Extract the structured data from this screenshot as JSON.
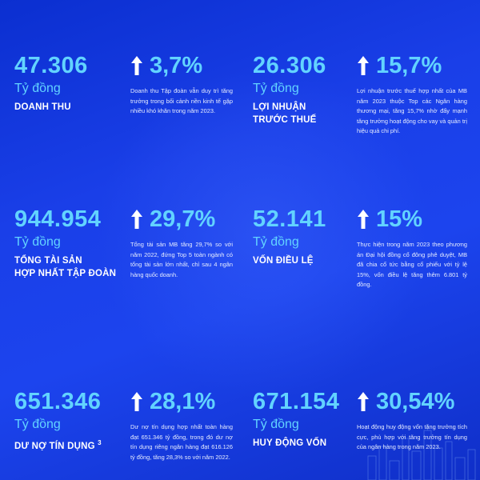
{
  "unit_label": "Tỷ đồng",
  "metrics": [
    {
      "value": "47.306",
      "label_line1": "DOANH THU",
      "label_line2": "",
      "growth": "3,7%",
      "description": "Doanh thu Tập đoàn vẫn duy trì tăng trưởng trong bối cảnh nền kinh tế gặp nhiều khó khăn trong năm 2023."
    },
    {
      "value": "26.306",
      "label_line1": "LỢI NHUẬN",
      "label_line2": "TRƯỚC THUẾ",
      "growth": "15,7%",
      "description": "Lợi nhuận trước thuế hợp nhất của MB năm 2023 thuộc Top các Ngân hàng thương mại, tăng 15,7% nhờ đẩy mạnh tăng trưởng hoạt động cho vay và quản trị hiệu quả chi phí."
    },
    {
      "value": "944.954",
      "label_line1": "TỔNG TÀI SẢN",
      "label_line2": "HỢP NHẤT TẬP ĐOÀN",
      "growth": "29,7%",
      "description": "Tổng tài sản MB tăng 29,7% so với năm 2022, đứng Top 5 toàn ngành có tổng tài sản lớn nhất, chỉ sau 4 ngân hàng quốc doanh."
    },
    {
      "value": "52.141",
      "label_line1": "VỐN ĐIỀU LỆ",
      "label_line2": "",
      "growth": "15%",
      "description": "Thực hiện trong năm 2023 theo phương án Đại hội đồng cổ đông phê duyệt, MB đã chia cổ tức bằng cổ phiếu với tỷ lệ 15%, vốn điều lệ tăng thêm 6.801 tỷ đồng."
    },
    {
      "value": "651.346",
      "label_line1": "DƯ NỢ TÍN DỤNG",
      "label_sup": "3",
      "label_line2": "",
      "growth": "28,1%",
      "description": "Dư nợ tín dụng hợp nhất toàn hàng đạt 651.346 tỷ đồng, trong đó dư nợ tín dụng riêng ngân hàng đạt 616.126 tỷ đồng, tăng 28,3% so với năm 2022."
    },
    {
      "value": "671.154",
      "label_line1": "HUY ĐỘNG VỐN",
      "label_line2": "",
      "growth": "30,54%",
      "description": "Hoạt động huy động vốn tăng trưởng tích cực, phù hợp với tăng trưởng tín dụng của ngân hàng trong năm 2023."
    }
  ],
  "colors": {
    "accent": "#62d3ff",
    "background": "#1a3fe8",
    "text": "#ffffff"
  },
  "icons": {
    "growth": "arrow-up-icon",
    "decoration": "city-skyline-icon"
  }
}
